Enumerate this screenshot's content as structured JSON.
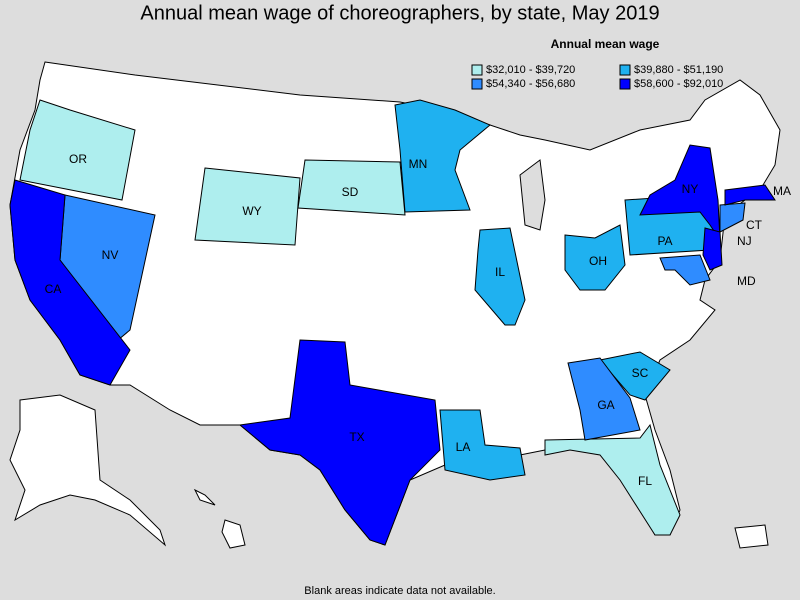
{
  "title": "Annual mean wage of choreographers, by state, May 2019",
  "legend": {
    "title": "Annual mean wage",
    "items": [
      {
        "label": "$32,010 - $39,720",
        "color": "#aeeeee",
        "states": [
          "OR",
          "WY",
          "SD",
          "FL"
        ]
      },
      {
        "label": "$39,880 - $51,190",
        "color": "#1fb1f0",
        "states": [
          "MN",
          "IL",
          "OH",
          "PA",
          "LA",
          "SC"
        ]
      },
      {
        "label": "$54,340 - $56,680",
        "color": "#2f8cff",
        "states": [
          "NV",
          "GA",
          "CT",
          "MD"
        ]
      },
      {
        "label": "$58,600 - $92,010",
        "color": "#0000ff",
        "states": [
          "CA",
          "TX",
          "NY",
          "NJ",
          "MA"
        ]
      }
    ]
  },
  "footnote": "Blank areas indicate data not available."
}
